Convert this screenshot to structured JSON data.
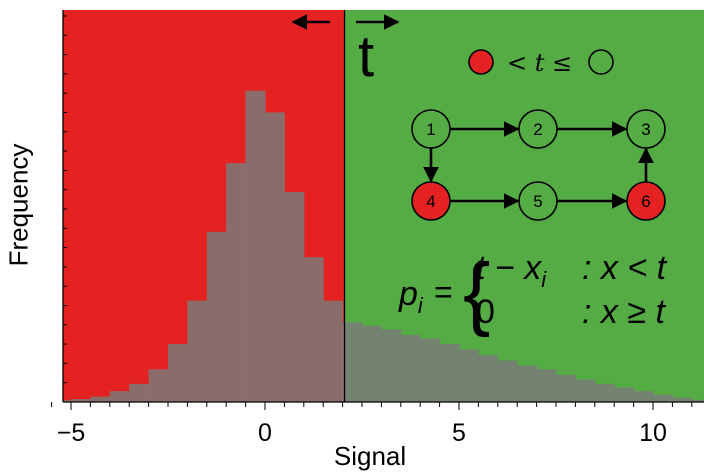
{
  "chart_data": {
    "type": "area",
    "xlabel": "Signal",
    "ylabel": "Frequency",
    "xlim": [
      -5.5,
      11.2
    ],
    "x_ticks": [
      -5,
      0,
      5,
      10
    ],
    "x_tick_labels": [
      "−5",
      "0",
      "5",
      "10"
    ],
    "threshold_x": 2.05,
    "threshold_label": "t",
    "region_colors": {
      "below_t": "#e52222",
      "above_t": "#55ac45",
      "overlay": "#7a7a78"
    },
    "histogram": {
      "bins_x": [
        -5.5,
        -5.0,
        -4.5,
        -4.0,
        -3.5,
        -3.0,
        -2.5,
        -2.0,
        -1.5,
        -1.0,
        -0.5,
        0.0,
        0.5,
        1.0,
        1.5,
        2.0,
        2.5,
        3.0,
        3.5,
        4.0,
        4.5,
        5.0,
        5.5,
        6.0,
        6.5,
        7.0,
        7.5,
        8.0,
        8.5,
        9.0,
        9.5,
        10.0,
        10.5,
        11.0
      ],
      "freq": [
        0.005,
        0.008,
        0.015,
        0.03,
        0.05,
        0.09,
        0.16,
        0.28,
        0.47,
        0.66,
        0.86,
        0.8,
        0.58,
        0.4,
        0.28,
        0.22,
        0.21,
        0.2,
        0.185,
        0.175,
        0.16,
        0.145,
        0.13,
        0.115,
        0.1,
        0.09,
        0.075,
        0.062,
        0.05,
        0.04,
        0.03,
        0.02,
        0.012,
        0.006
      ]
    }
  },
  "legend": {
    "condition_text": "< t ≤",
    "red_marker": "red-circle",
    "green_marker": "green-circle"
  },
  "graph": {
    "nodes": [
      {
        "id": "1",
        "color": "green"
      },
      {
        "id": "2",
        "color": "green"
      },
      {
        "id": "3",
        "color": "green"
      },
      {
        "id": "4",
        "color": "red"
      },
      {
        "id": "5",
        "color": "green"
      },
      {
        "id": "6",
        "color": "red"
      }
    ],
    "edges": [
      [
        "1",
        "2"
      ],
      [
        "2",
        "3"
      ],
      [
        "1",
        "4"
      ],
      [
        "4",
        "5"
      ],
      [
        "5",
        "6"
      ],
      [
        "6",
        "3"
      ]
    ]
  },
  "formula": {
    "lhs_base": "p",
    "lhs_sub": "i",
    "eq": "=",
    "case1_expr_a": "t − x",
    "case1_expr_sub": "i",
    "case1_cond": ": x < t",
    "case2_expr": "0",
    "case2_cond": ": x ≥ t"
  }
}
